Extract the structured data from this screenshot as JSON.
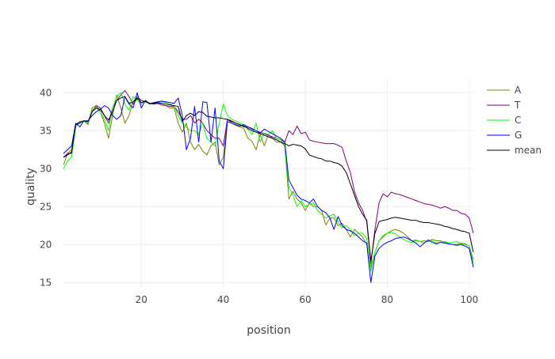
{
  "chart_data": {
    "type": "line",
    "title": "",
    "xlabel": "position",
    "ylabel": "quality",
    "xlim": [
      1,
      101
    ],
    "ylim": [
      14.2,
      41.8
    ],
    "grid": true,
    "legend_position": "right",
    "x_ticks": [
      20,
      40,
      60,
      80,
      100
    ],
    "y_ticks": [
      15,
      20,
      25,
      30,
      35,
      40
    ],
    "x": [
      1,
      2,
      3,
      4,
      5,
      6,
      7,
      8,
      9,
      10,
      11,
      12,
      13,
      14,
      15,
      16,
      17,
      18,
      19,
      20,
      21,
      22,
      23,
      24,
      25,
      26,
      27,
      28,
      29,
      30,
      31,
      32,
      33,
      34,
      35,
      36,
      37,
      38,
      39,
      40,
      41,
      42,
      43,
      44,
      45,
      46,
      47,
      48,
      49,
      50,
      51,
      52,
      53,
      54,
      55,
      56,
      57,
      58,
      59,
      60,
      61,
      62,
      63,
      64,
      65,
      66,
      67,
      68,
      69,
      70,
      71,
      72,
      73,
      74,
      75,
      76,
      77,
      78,
      79,
      80,
      81,
      82,
      83,
      84,
      85,
      86,
      87,
      88,
      89,
      90,
      91,
      92,
      93,
      94,
      95,
      96,
      97,
      98,
      99,
      100,
      101
    ],
    "series": [
      {
        "name": "A",
        "color": "#808000",
        "values": [
          30.5,
          32,
          32.5,
          35.8,
          36.2,
          36.3,
          35.8,
          38,
          38.3,
          37.5,
          36,
          34,
          37,
          39.7,
          38,
          36,
          37,
          38.8,
          39.5,
          39,
          38.8,
          38.6,
          38.5,
          38.6,
          38.4,
          38.3,
          38,
          38,
          36,
          34.8,
          36,
          33.5,
          32.5,
          33.2,
          32.3,
          31.8,
          33,
          33.5,
          30.5,
          31.5,
          36.5,
          36,
          35.7,
          35.5,
          35.3,
          34,
          33.6,
          32.5,
          34.5,
          33,
          34.5,
          34,
          33.5,
          33.5,
          33,
          26,
          27,
          26,
          25.5,
          24.5,
          25.5,
          25,
          25,
          24.5,
          22.6,
          23.5,
          23.5,
          22.5,
          22.8,
          22,
          21,
          22,
          21.5,
          21,
          20,
          17,
          19,
          20.5,
          21,
          21.5,
          21.8,
          22,
          21.8,
          21.5,
          21,
          20.5,
          20.6,
          20.4,
          20.5,
          20.4,
          20.7,
          20.5,
          20.5,
          20.3,
          20.1,
          20,
          20,
          20.2,
          20.1,
          19.8,
          18
        ]
      },
      {
        "name": "T",
        "color": "#800080",
        "values": [
          31.5,
          32,
          32,
          35.8,
          36.2,
          36.3,
          36,
          37.5,
          38.3,
          38,
          37,
          36,
          38,
          39,
          39.7,
          40.3,
          39.5,
          38.5,
          39.2,
          39,
          38.8,
          38.6,
          38.5,
          38.6,
          38.4,
          38.3,
          38.2,
          38.2,
          37.5,
          36.5,
          36.5,
          37,
          36,
          36.5,
          36,
          35,
          34.5,
          34,
          34,
          33,
          36.5,
          36.3,
          36,
          35.8,
          35.5,
          35.5,
          35.2,
          35,
          34.8,
          34.6,
          34.4,
          34.2,
          34,
          33.8,
          33.5,
          35,
          34.5,
          35.6,
          34.6,
          34.8,
          33.8,
          33.6,
          33.5,
          33.4,
          33.3,
          33.3,
          33.3,
          33.1,
          32.8,
          31,
          29.5,
          27,
          25.5,
          24.5,
          23,
          17.5,
          22,
          25.5,
          26.7,
          26.3,
          26.9,
          26.7,
          26.6,
          26.4,
          26.2,
          26,
          25.8,
          25.6,
          25.4,
          25.3,
          25.2,
          25,
          24.8,
          25,
          24.8,
          24.5,
          24.5,
          24.1,
          24,
          23.5,
          21.5
        ]
      },
      {
        "name": "C",
        "color": "#00ff00",
        "values": [
          30,
          31,
          31.5,
          35.5,
          36.1,
          36.3,
          36,
          37.8,
          38,
          37.5,
          36.5,
          35,
          38,
          39.5,
          40,
          38.5,
          37.7,
          39.5,
          39,
          38.5,
          39,
          38.6,
          38.7,
          38.8,
          38.8,
          38.7,
          38.5,
          38.3,
          37,
          36,
          35.5,
          35,
          35,
          34.5,
          36,
          34,
          33.5,
          33,
          36,
          38.5,
          37,
          36.5,
          36.3,
          36,
          35.8,
          35.2,
          34.5,
          36,
          33.5,
          34.7,
          34.5,
          35,
          34,
          33.8,
          33,
          27.5,
          26.5,
          25,
          25.8,
          25,
          25.3,
          25.5,
          24.5,
          24,
          23.5,
          23.8,
          24,
          23,
          22.2,
          22.5,
          22,
          21.2,
          21.5,
          21.5,
          20.8,
          16.5,
          19,
          20.5,
          21.2,
          21.5,
          21.6,
          21.4,
          21,
          20.7,
          20.4,
          20.3,
          20.5,
          20.4,
          20.2,
          20.6,
          20.5,
          20.2,
          20.3,
          20.4,
          20.2,
          20.3,
          20.4,
          20.1,
          20,
          19.8,
          17.5
        ]
      },
      {
        "name": "G",
        "color": "#0000ff",
        "values": [
          32,
          32.5,
          33,
          36,
          35.5,
          36.3,
          36.3,
          37,
          37.5,
          37.8,
          38.3,
          38,
          37,
          36.5,
          37,
          39.5,
          38.5,
          38,
          40,
          38,
          39,
          38.5,
          38.7,
          38.8,
          38.9,
          38.8,
          38.7,
          38.6,
          39.3,
          37,
          32.5,
          34,
          38.2,
          33.5,
          38.8,
          38.7,
          33.5,
          38,
          31,
          30,
          36.2,
          36,
          35.8,
          35.6,
          35.8,
          35.5,
          35.3,
          35,
          34.7,
          35.2,
          34.9,
          34.6,
          34.3,
          34,
          33.5,
          28.5,
          27.5,
          26.5,
          26,
          25.8,
          25.5,
          26,
          25,
          24.5,
          24.2,
          23.5,
          22,
          23.7,
          22.5,
          22,
          21.8,
          21.5,
          21,
          20.5,
          20.2,
          15,
          18.5,
          19.5,
          20,
          20.3,
          20.5,
          20.8,
          20.9,
          21,
          20.8,
          20.5,
          20.2,
          19.7,
          20.2,
          20.6,
          20.3,
          20.1,
          20.3,
          20.2,
          20.1,
          20,
          19.9,
          20,
          19.8,
          19.5,
          17
        ]
      },
      {
        "name": "mean",
        "color": "#000000",
        "values": [
          31.5,
          31.8,
          32.2,
          35.8,
          36,
          36.3,
          36.2,
          37.5,
          38,
          37.8,
          37,
          36.4,
          37.5,
          39,
          39.3,
          39.5,
          38.6,
          38.8,
          39.3,
          38.7,
          38.9,
          38.6,
          38.6,
          38.7,
          38.6,
          38.5,
          38.4,
          38.3,
          38.2,
          36.2,
          37,
          37.3,
          37,
          37.5,
          37.4,
          36.9,
          36.8,
          36.7,
          36.7,
          36.6,
          36.5,
          36.2,
          36,
          35.8,
          35.6,
          35.3,
          35,
          34.8,
          34.6,
          34.4,
          34.2,
          34,
          33.8,
          33.5,
          33.3,
          33,
          33.2,
          33.1,
          33,
          32.6,
          31.8,
          31.6,
          31.4,
          31.3,
          31,
          31,
          30.8,
          30.7,
          30.3,
          29.5,
          28,
          26.5,
          25,
          24,
          23.2,
          17.8,
          21.5,
          23,
          23.2,
          23.3,
          23.5,
          23.6,
          23.5,
          23.4,
          23.3,
          23.2,
          23.2,
          23,
          22.9,
          22.9,
          22.8,
          22.7,
          22.6,
          22.4,
          22.3,
          22.1,
          22,
          21.8,
          21.7,
          21.5,
          19
        ]
      }
    ]
  }
}
